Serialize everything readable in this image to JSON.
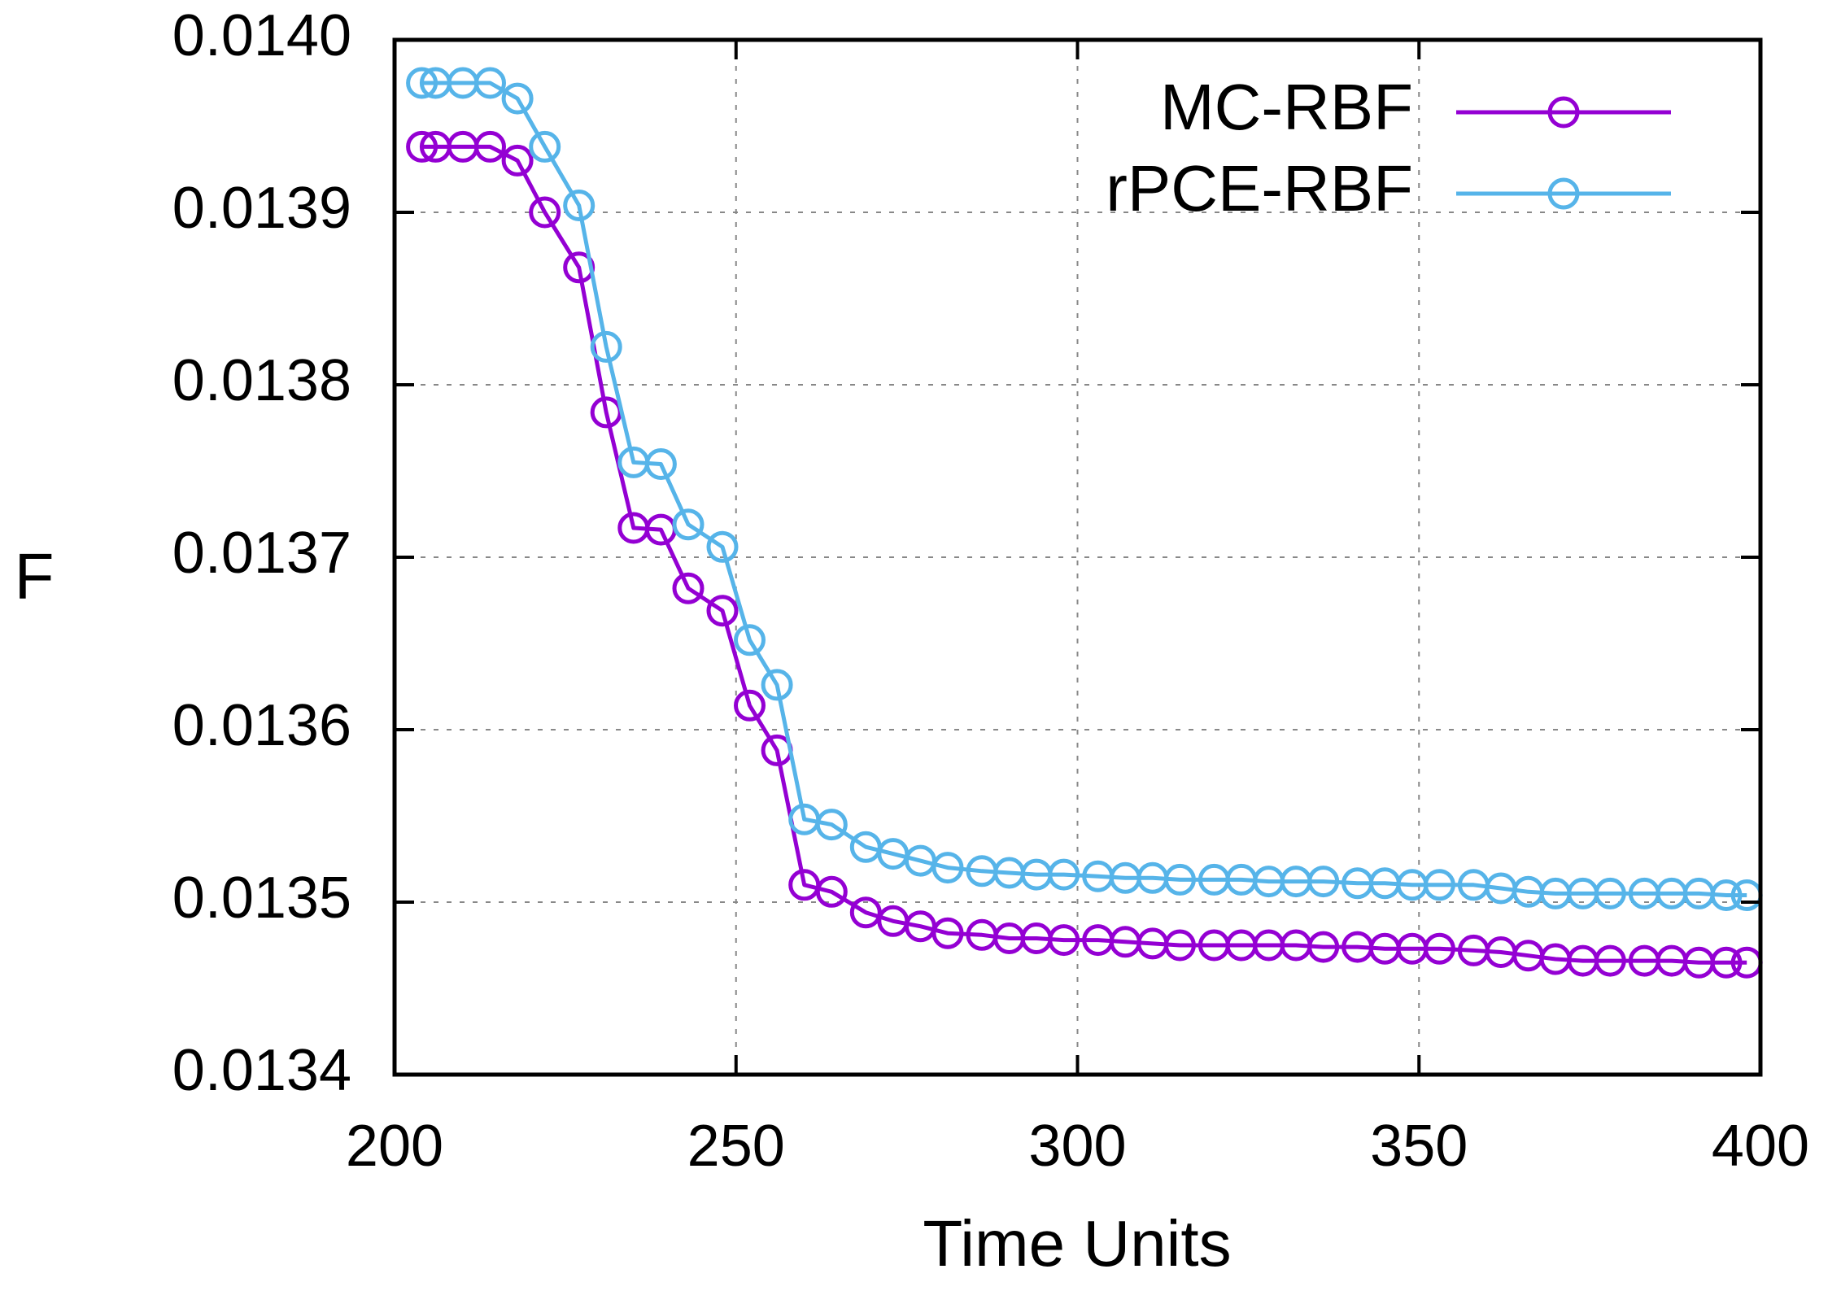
{
  "chart_data": {
    "type": "line",
    "title": "",
    "xlabel": "Time Units",
    "ylabel": "F",
    "xlim": [
      200,
      400
    ],
    "ylim": [
      0.0134,
      0.014
    ],
    "x_ticks": [
      "200",
      "250",
      "300",
      "350",
      "400"
    ],
    "y_ticks": [
      "0.0134",
      "0.0135",
      "0.0136",
      "0.0137",
      "0.0138",
      "0.0139",
      "0.0140"
    ],
    "grid": true,
    "legend_position": "top-right",
    "x": [
      204,
      206,
      210,
      214,
      218,
      222,
      227,
      231,
      235,
      239,
      243,
      248,
      252,
      256,
      260,
      264,
      269,
      273,
      277,
      281,
      286,
      290,
      294,
      298,
      303,
      307,
      311,
      315,
      320,
      324,
      328,
      332,
      336,
      341,
      345,
      349,
      353,
      358,
      362,
      366,
      370,
      374,
      378,
      383,
      387,
      391,
      395,
      398
    ],
    "series": [
      {
        "name": "MC-RBF",
        "color": "#9400d3",
        "values": [
          0.013938,
          0.013938,
          0.013938,
          0.013938,
          0.01393,
          0.0139,
          0.013868,
          0.013784,
          0.013717,
          0.013716,
          0.013682,
          0.013669,
          0.013614,
          0.013588,
          0.01351,
          0.013506,
          0.013494,
          0.013489,
          0.013486,
          0.013482,
          0.013481,
          0.013479,
          0.013479,
          0.013478,
          0.013478,
          0.013477,
          0.013476,
          0.013475,
          0.013475,
          0.013475,
          0.013475,
          0.013475,
          0.013474,
          0.013474,
          0.013473,
          0.013473,
          0.013473,
          0.013472,
          0.013471,
          0.013469,
          0.013467,
          0.013466,
          0.013466,
          0.013466,
          0.013466,
          0.013465,
          0.013465,
          0.013465
        ]
      },
      {
        "name": "rPCE-RBF",
        "color": "#56b4e9",
        "values": [
          0.013975,
          0.013975,
          0.013975,
          0.013975,
          0.013966,
          0.013938,
          0.013904,
          0.013822,
          0.013755,
          0.013754,
          0.013719,
          0.013706,
          0.013652,
          0.013626,
          0.013548,
          0.013545,
          0.013532,
          0.013528,
          0.013524,
          0.01352,
          0.013518,
          0.013517,
          0.013516,
          0.013516,
          0.013515,
          0.013514,
          0.013514,
          0.013513,
          0.013513,
          0.013513,
          0.013512,
          0.013512,
          0.013512,
          0.013511,
          0.013511,
          0.01351,
          0.01351,
          0.01351,
          0.013508,
          0.013506,
          0.013505,
          0.013505,
          0.013505,
          0.013505,
          0.013505,
          0.013505,
          0.013504,
          0.013504
        ]
      }
    ]
  }
}
